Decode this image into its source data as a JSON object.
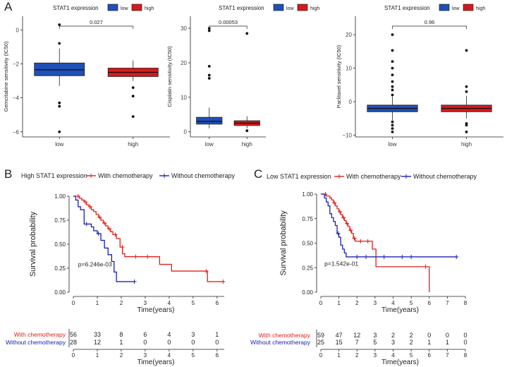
{
  "colors": {
    "low": "#1f4fb8",
    "high": "#d7191c",
    "with": "#e0201b",
    "without": "#1b22b0",
    "axis": "#222222",
    "box_outline": "#222222"
  },
  "legend_box": {
    "title": "STAT1 expression",
    "low_label": "low",
    "high_label": "high"
  },
  "panel_labels": {
    "a": "A",
    "b": "B",
    "c": "C"
  },
  "chart_data": [
    {
      "id": "A1",
      "type": "box",
      "ylabel": "Gemcitabine sensitivity (IC50)",
      "categories": [
        "low",
        "high"
      ],
      "ylim": [
        -6.3,
        0.8
      ],
      "yticks": [
        0,
        -2,
        -4,
        -6
      ],
      "pvalue": "0.027",
      "boxes": [
        {
          "q1": -2.7,
          "median": -2.35,
          "q3": -1.95,
          "lo": -3.3,
          "hi": -1.1
        },
        {
          "q1": -2.75,
          "median": -2.5,
          "q3": -2.25,
          "lo": -3.0,
          "hi": -1.8
        }
      ],
      "outliers": [
        [
          0.3,
          -0.8,
          -4.3,
          -4.5,
          -6.0
        ],
        [
          -3.4,
          -3.9,
          -5.1
        ]
      ]
    },
    {
      "id": "A2",
      "type": "box",
      "ylabel": "Cisplatin sensitivity (IC50)",
      "categories": [
        "low",
        "high"
      ],
      "ylim": [
        -1.5,
        33.5
      ],
      "yticks": [
        0,
        10,
        20,
        30
      ],
      "pvalue": "0.00053",
      "boxes": [
        {
          "q1": 2.2,
          "median": 3.0,
          "q3": 4.2,
          "lo": 1.0,
          "hi": 7.0
        },
        {
          "q1": 1.8,
          "median": 2.5,
          "q3": 3.2,
          "lo": 1.0,
          "hi": 4.5
        }
      ],
      "outliers": [
        [
          30.0,
          29.3,
          19.0,
          16.4,
          15.5
        ],
        [
          28.5,
          0.3
        ]
      ]
    },
    {
      "id": "A3",
      "type": "box",
      "ylabel": "Paclitaxel sensitivity (IC50)",
      "categories": [
        "low",
        "high"
      ],
      "ylim": [
        -10.5,
        25.5
      ],
      "yticks": [
        -10,
        0,
        10,
        20
      ],
      "pvalue": "0.96",
      "boxes": [
        {
          "q1": -3.0,
          "median": -2.0,
          "q3": -1.0,
          "lo": -5.5,
          "hi": 1.5
        },
        {
          "q1": -3.0,
          "median": -2.0,
          "q3": -1.0,
          "lo": -5.0,
          "hi": 1.8
        }
      ],
      "outliers": [
        [
          20.0,
          15.3,
          12.0,
          10.0,
          8.0,
          6.0,
          4.5,
          3.5,
          2.0,
          -6.0,
          -7.0,
          -8.0,
          -9.0
        ],
        [
          15.3,
          4.5,
          3.0,
          -6.5,
          -7.0,
          -9.0
        ]
      ]
    },
    {
      "id": "B",
      "type": "line",
      "subtype": "kaplan-meier",
      "legend_title": "High STAT1 expression",
      "series_names": [
        "With chemotherapy",
        "Without chemotherapy"
      ],
      "ylabel": "Survival probability",
      "xlabel": "Time(years)",
      "xlim": [
        0,
        6.3
      ],
      "ylim": [
        0,
        1
      ],
      "xticks": [
        0,
        1,
        2,
        3,
        4,
        5,
        6
      ],
      "yticks": [
        0,
        0.25,
        0.5,
        0.75,
        1.0
      ],
      "ytick_labels": [
        "0.00",
        "0.25",
        "0.50",
        "0.75",
        "1.00"
      ],
      "pvalue_text": "p=6.246e-03",
      "series": [
        {
          "name": "With chemotherapy",
          "steps": [
            [
              0,
              1.0
            ],
            [
              0.25,
              0.98
            ],
            [
              0.35,
              0.96
            ],
            [
              0.45,
              0.94
            ],
            [
              0.55,
              0.91
            ],
            [
              0.65,
              0.89
            ],
            [
              0.75,
              0.86
            ],
            [
              0.85,
              0.84
            ],
            [
              0.95,
              0.81
            ],
            [
              1.05,
              0.78
            ],
            [
              1.15,
              0.75
            ],
            [
              1.25,
              0.72
            ],
            [
              1.35,
              0.69
            ],
            [
              1.45,
              0.66
            ],
            [
              1.55,
              0.63
            ],
            [
              1.65,
              0.6
            ],
            [
              1.8,
              0.56
            ],
            [
              1.95,
              0.47
            ],
            [
              2.05,
              0.4
            ],
            [
              2.15,
              0.37
            ],
            [
              3.6,
              0.29
            ],
            [
              4.1,
              0.22
            ],
            [
              5.6,
              0.11
            ],
            [
              6.3,
              0.11
            ]
          ],
          "censors": [
            [
              0.2,
              1.0
            ],
            [
              0.5,
              0.94
            ],
            [
              0.7,
              0.89
            ],
            [
              1.1,
              0.78
            ],
            [
              1.3,
              0.72
            ],
            [
              1.5,
              0.66
            ],
            [
              1.75,
              0.6
            ],
            [
              2.05,
              0.47
            ],
            [
              2.6,
              0.37
            ],
            [
              3.1,
              0.37
            ],
            [
              5.55,
              0.22
            ],
            [
              6.25,
              0.11
            ]
          ]
        },
        {
          "name": "Without chemotherapy",
          "steps": [
            [
              0,
              1.0
            ],
            [
              0.1,
              0.96
            ],
            [
              0.2,
              0.89
            ],
            [
              0.3,
              0.86
            ],
            [
              0.45,
              0.71
            ],
            [
              0.75,
              0.68
            ],
            [
              0.85,
              0.64
            ],
            [
              1.0,
              0.61
            ],
            [
              1.15,
              0.54
            ],
            [
              1.3,
              0.46
            ],
            [
              1.45,
              0.39
            ],
            [
              1.6,
              0.32
            ],
            [
              1.7,
              0.21
            ],
            [
              1.8,
              0.11
            ],
            [
              2.55,
              0.11
            ]
          ],
          "censors": [
            [
              0.55,
              0.71
            ],
            [
              1.05,
              0.61
            ],
            [
              2.55,
              0.11
            ]
          ]
        }
      ],
      "risk_table": {
        "xlabel": "Time(years)",
        "ticks": [
          0,
          1,
          2,
          3,
          4,
          5,
          6
        ],
        "rows": [
          {
            "label": "With chemotherapy",
            "values": [
              "56",
              "33",
              "8",
              "6",
              "4",
              "3",
              "1"
            ]
          },
          {
            "label": "Without chemotherapy",
            "values": [
              "28",
              "12",
              "1",
              "0",
              "0",
              "0",
              "0"
            ]
          }
        ]
      }
    },
    {
      "id": "C",
      "type": "line",
      "subtype": "kaplan-meier",
      "legend_title": "Low STAT1 expression",
      "series_names": [
        "With chemotherapy",
        "Without chemotherapy"
      ],
      "ylabel": "Survival probability",
      "xlabel": "Time(years)",
      "xlim": [
        0,
        8
      ],
      "ylim": [
        0,
        1
      ],
      "xticks": [
        0,
        1,
        2,
        3,
        4,
        5,
        6,
        7,
        8
      ],
      "yticks": [
        0,
        0.25,
        0.5,
        0.75,
        1.0
      ],
      "ytick_labels": [
        "0.00",
        "0.25",
        "0.50",
        "0.75",
        "1.00"
      ],
      "pvalue_text": "p=1.542e-01",
      "series": [
        {
          "name": "With chemotherapy",
          "steps": [
            [
              0,
              1.0
            ],
            [
              0.3,
              0.98
            ],
            [
              0.5,
              0.96
            ],
            [
              0.6,
              0.94
            ],
            [
              0.7,
              0.91
            ],
            [
              0.8,
              0.88
            ],
            [
              0.9,
              0.85
            ],
            [
              1.0,
              0.82
            ],
            [
              1.1,
              0.79
            ],
            [
              1.2,
              0.76
            ],
            [
              1.3,
              0.73
            ],
            [
              1.4,
              0.7
            ],
            [
              1.5,
              0.67
            ],
            [
              1.6,
              0.63
            ],
            [
              1.7,
              0.6
            ],
            [
              1.8,
              0.55
            ],
            [
              1.9,
              0.52
            ],
            [
              2.0,
              0.52
            ],
            [
              2.85,
              0.44
            ],
            [
              3.05,
              0.26
            ],
            [
              5.85,
              0.26
            ],
            [
              6.0,
              0.0
            ]
          ],
          "censors": [
            [
              0.25,
              1.0
            ],
            [
              0.75,
              0.91
            ],
            [
              1.05,
              0.82
            ],
            [
              1.25,
              0.76
            ],
            [
              1.45,
              0.7
            ],
            [
              1.65,
              0.63
            ],
            [
              1.85,
              0.55
            ],
            [
              2.2,
              0.52
            ],
            [
              2.6,
              0.52
            ],
            [
              5.8,
              0.26
            ]
          ]
        },
        {
          "name": "Without chemotherapy",
          "steps": [
            [
              0,
              1.0
            ],
            [
              0.2,
              0.96
            ],
            [
              0.3,
              0.92
            ],
            [
              0.4,
              0.88
            ],
            [
              0.5,
              0.8
            ],
            [
              0.6,
              0.76
            ],
            [
              0.7,
              0.72
            ],
            [
              0.8,
              0.68
            ],
            [
              0.9,
              0.6
            ],
            [
              1.0,
              0.56
            ],
            [
              1.1,
              0.48
            ],
            [
              1.2,
              0.44
            ],
            [
              1.3,
              0.4
            ],
            [
              1.4,
              0.36
            ],
            [
              7.55,
              0.36
            ]
          ],
          "censors": [
            [
              0.95,
              0.6
            ],
            [
              2.0,
              0.36
            ],
            [
              2.5,
              0.36
            ],
            [
              3.5,
              0.36
            ],
            [
              4.5,
              0.36
            ],
            [
              5.0,
              0.36
            ],
            [
              7.5,
              0.36
            ]
          ]
        }
      ],
      "risk_table": {
        "xlabel": "Time(years)",
        "ticks": [
          0,
          1,
          2,
          3,
          4,
          5,
          6,
          7,
          8
        ],
        "rows": [
          {
            "label": "With chemotherapy",
            "values": [
              "59",
              "47",
              "12",
              "3",
              "2",
              "2",
              "0",
              "0",
              "0"
            ]
          },
          {
            "label": "Without chemotherapy",
            "values": [
              "25",
              "15",
              "7",
              "5",
              "3",
              "2",
              "1",
              "1",
              "0"
            ]
          }
        ]
      }
    }
  ]
}
